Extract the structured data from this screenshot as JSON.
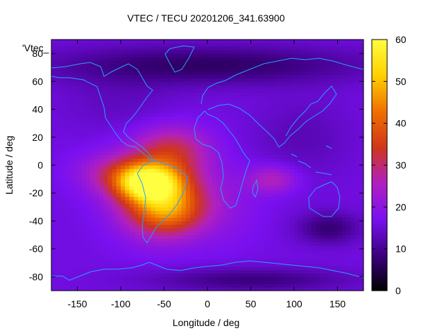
{
  "chart_data": {
    "type": "heatmap",
    "title": "VTEC / TECU 20201206_341.63900",
    "xlabel": "Longitude / deg",
    "ylabel": "Latitude / deg",
    "key_label": "'Vtec_",
    "xlim": [
      -180,
      180
    ],
    "ylim": [
      -90,
      90
    ],
    "x_ticks": [
      -150,
      -100,
      -50,
      0,
      50,
      100,
      150
    ],
    "y_ticks": [
      -80,
      -60,
      -40,
      -20,
      0,
      20,
      40,
      60,
      80
    ],
    "colorbar": {
      "range": [
        0,
        60
      ],
      "ticks": [
        0,
        10,
        20,
        30,
        40,
        50,
        60
      ],
      "palette": [
        "#000000",
        "#3c0080",
        "#7a10f0",
        "#b020c0",
        "#d0361a",
        "#f07000",
        "#ffd000",
        "#ffff40"
      ]
    },
    "grid": false,
    "overlay": "coastlines",
    "background_level": 16,
    "features": [
      {
        "lon": -70,
        "lat": -12,
        "value": 55,
        "sx": 25,
        "sy": 9
      },
      {
        "lon": -55,
        "lat": -20,
        "value": 40,
        "sx": 36,
        "sy": 20
      },
      {
        "lon": -45,
        "lat": -32,
        "value": 35,
        "sx": 28,
        "sy": 12
      },
      {
        "lon": -40,
        "lat": 12,
        "value": 30,
        "sx": 30,
        "sy": 12
      },
      {
        "lon": 75,
        "lat": -10,
        "value": 28,
        "sx": 20,
        "sy": 7
      },
      {
        "lon": -110,
        "lat": -5,
        "value": 26,
        "sx": 30,
        "sy": 10
      },
      {
        "lon": 20,
        "lat": -30,
        "value": 20,
        "sx": 30,
        "sy": 20
      },
      {
        "lon": 0,
        "lat": 72,
        "value": 5,
        "sx": 130,
        "sy": 10
      },
      {
        "lon": 140,
        "lat": -45,
        "value": 6,
        "sx": 25,
        "sy": 8
      },
      {
        "lon": 50,
        "lat": -82,
        "value": 7,
        "sx": 80,
        "sy": 6
      },
      {
        "lon": -100,
        "lat": 45,
        "value": 13,
        "sx": 50,
        "sy": 15
      },
      {
        "lon": 110,
        "lat": 20,
        "value": 12,
        "sx": 40,
        "sy": 20
      }
    ]
  }
}
